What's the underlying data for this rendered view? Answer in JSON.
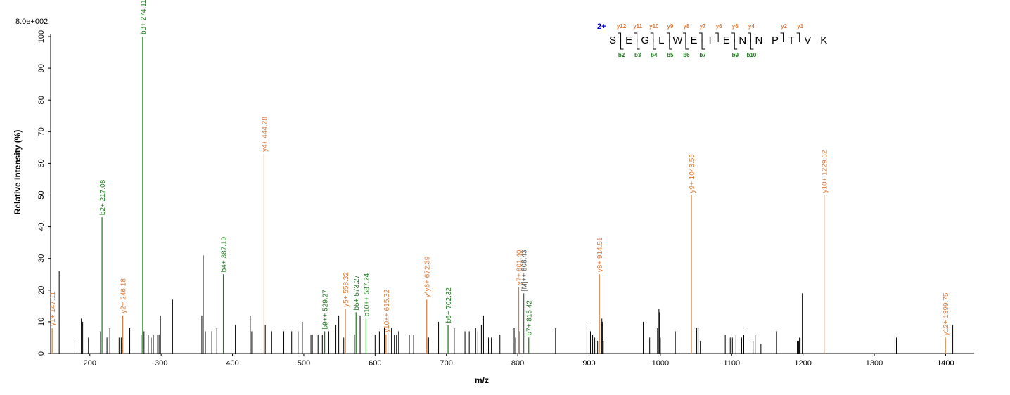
{
  "chart_data": {
    "type": "bar",
    "max_intensity_label": "8.0e+002",
    "xlabel": "m/z",
    "ylabel": "Relative   Intensity (%)",
    "xlim": [
      145,
      1440
    ],
    "ylim": [
      0,
      100
    ],
    "x_ticks": [
      200,
      300,
      400,
      500,
      600,
      700,
      800,
      900,
      1000,
      1100,
      1200,
      1300,
      1400
    ],
    "y_ticks": [
      0,
      10,
      20,
      30,
      40,
      50,
      60,
      70,
      80,
      90,
      100
    ],
    "colors": {
      "unassigned": "#000000",
      "y_ion": "#e07b39",
      "b_ion": "#1a7a1a",
      "precursor": "#555555",
      "charge": "#0000cc"
    },
    "annotated_peaks": [
      {
        "mz": 147.11,
        "intensity": 8,
        "label": "y1+ 147.11",
        "series": "y"
      },
      {
        "mz": 217.08,
        "intensity": 43,
        "label": "b2+ 217.08",
        "series": "b"
      },
      {
        "mz": 246.18,
        "intensity": 12,
        "label": "y2+ 246.18",
        "series": "y"
      },
      {
        "mz": 274.11,
        "intensity": 100,
        "label": "b3+ 274.11",
        "series": "b"
      },
      {
        "mz": 387.19,
        "intensity": 25,
        "label": "b4+ 387.19",
        "series": "b"
      },
      {
        "mz": 444.28,
        "intensity": 63,
        "label": "y4+ 444.28",
        "series": "y"
      },
      {
        "mz": 529.27,
        "intensity": 7,
        "label": "b9++ 529.27",
        "series": "b"
      },
      {
        "mz": 558.32,
        "intensity": 14,
        "label": "y5+ 558.32",
        "series": "y"
      },
      {
        "mz": 573.27,
        "intensity": 13,
        "label": "b5+ 573.27",
        "series": "b"
      },
      {
        "mz": 587.24,
        "intensity": 11,
        "label": "b10++ 587.24",
        "series": "b"
      },
      {
        "mz": 615.32,
        "intensity": 6,
        "label": "y10++ 615.32",
        "series": "y"
      },
      {
        "mz": 672.39,
        "intensity": 17,
        "label": "y*y6+ 672.39",
        "series": "y"
      },
      {
        "mz": 702.32,
        "intensity": 9,
        "label": "b6+ 702.32",
        "series": "b"
      },
      {
        "mz": 801.4,
        "intensity": 21,
        "label": "y7+ 801.40",
        "series": "y"
      },
      {
        "mz": 808.43,
        "intensity": 19,
        "label": "[M]++ 808.43",
        "series": "precursor"
      },
      {
        "mz": 815.42,
        "intensity": 5,
        "label": "b7+ 815.42",
        "series": "b"
      },
      {
        "mz": 914.51,
        "intensity": 25,
        "label": "y8+ 914.51",
        "series": "y"
      },
      {
        "mz": 1043.55,
        "intensity": 50,
        "label": "y9+ 1043.55",
        "series": "y"
      },
      {
        "mz": 1229.62,
        "intensity": 50,
        "label": "y10+ 1229.62",
        "series": "y"
      },
      {
        "mz": 1399.75,
        "intensity": 5,
        "label": "y12+ 1399.75",
        "series": "y"
      }
    ],
    "unassigned_peaks": [
      [
        157,
        26
      ],
      [
        179,
        5
      ],
      [
        188,
        11
      ],
      [
        190,
        10
      ],
      [
        198,
        5
      ],
      [
        215,
        7
      ],
      [
        224,
        5
      ],
      [
        228,
        8
      ],
      [
        241,
        5
      ],
      [
        244,
        5
      ],
      [
        256,
        8
      ],
      [
        272,
        6
      ],
      [
        276,
        7
      ],
      [
        282,
        6
      ],
      [
        286,
        5
      ],
      [
        289,
        6
      ],
      [
        295,
        6
      ],
      [
        297,
        6
      ],
      [
        299,
        12
      ],
      [
        316,
        17
      ],
      [
        357,
        12
      ],
      [
        359,
        31
      ],
      [
        362,
        7
      ],
      [
        371,
        7
      ],
      [
        378,
        8
      ],
      [
        404,
        9
      ],
      [
        425,
        12
      ],
      [
        427,
        7
      ],
      [
        446,
        9
      ],
      [
        455,
        7
      ],
      [
        472,
        7
      ],
      [
        483,
        7
      ],
      [
        492,
        7
      ],
      [
        498,
        10
      ],
      [
        510,
        6
      ],
      [
        512,
        6
      ],
      [
        520,
        6
      ],
      [
        526,
        6
      ],
      [
        535,
        7
      ],
      [
        538,
        8
      ],
      [
        541,
        7
      ],
      [
        545,
        9
      ],
      [
        549,
        12
      ],
      [
        556,
        5
      ],
      [
        571,
        6
      ],
      [
        579,
        12
      ],
      [
        600,
        6
      ],
      [
        606,
        7
      ],
      [
        613,
        8
      ],
      [
        618,
        12
      ],
      [
        623,
        8
      ],
      [
        627,
        6
      ],
      [
        630,
        6
      ],
      [
        633,
        7
      ],
      [
        648,
        6
      ],
      [
        654,
        6
      ],
      [
        674,
        5
      ],
      [
        675,
        5
      ],
      [
        689,
        10
      ],
      [
        711,
        8
      ],
      [
        726,
        7
      ],
      [
        732,
        7
      ],
      [
        741,
        8
      ],
      [
        744,
        7
      ],
      [
        749,
        9
      ],
      [
        752,
        12
      ],
      [
        759,
        5
      ],
      [
        763,
        5
      ],
      [
        775,
        6
      ],
      [
        795,
        8
      ],
      [
        797,
        5
      ],
      [
        803,
        7
      ],
      [
        853,
        8
      ],
      [
        897,
        10
      ],
      [
        902,
        7
      ],
      [
        905,
        6
      ],
      [
        908,
        5
      ],
      [
        912,
        4
      ],
      [
        917,
        10
      ],
      [
        918,
        11
      ],
      [
        919,
        10
      ],
      [
        920,
        4
      ],
      [
        976,
        10
      ],
      [
        985,
        5
      ],
      [
        996,
        8
      ],
      [
        998,
        14
      ],
      [
        999,
        13
      ],
      [
        1000,
        5
      ],
      [
        1021,
        7
      ],
      [
        1051,
        8
      ],
      [
        1053,
        8
      ],
      [
        1056,
        4
      ],
      [
        1091,
        6
      ],
      [
        1098,
        5
      ],
      [
        1101,
        5
      ],
      [
        1106,
        6
      ],
      [
        1114,
        5
      ],
      [
        1116,
        8
      ],
      [
        1117,
        6
      ],
      [
        1130,
        4
      ],
      [
        1133,
        6
      ],
      [
        1141,
        3
      ],
      [
        1163,
        7
      ],
      [
        1192,
        4
      ],
      [
        1194,
        4
      ],
      [
        1195,
        5
      ],
      [
        1196,
        5
      ],
      [
        1199,
        19
      ],
      [
        1329,
        6
      ],
      [
        1331,
        5
      ],
      [
        1410,
        9
      ]
    ],
    "sequence": {
      "charge": "2+",
      "residues": [
        "S",
        "E",
        "G",
        "L",
        "W",
        "E",
        "I",
        "E",
        "N",
        "N",
        "P",
        "T",
        "V",
        "K"
      ],
      "y_ions": [
        {
          "after": 1,
          "label": "y12"
        },
        {
          "after": 2,
          "label": "y11"
        },
        {
          "after": 3,
          "label": "y10"
        },
        {
          "after": 4,
          "label": "y9"
        },
        {
          "after": 5,
          "label": "y8"
        },
        {
          "after": 6,
          "label": "y7"
        },
        {
          "after": 7,
          "label": "y6"
        },
        {
          "after": 8,
          "label": "y6"
        },
        {
          "after": 9,
          "label": "y4"
        },
        {
          "after": 11,
          "label": "y2"
        },
        {
          "after": 12,
          "label": "y1"
        }
      ],
      "b_ions": [
        {
          "after": 1,
          "label": "b2"
        },
        {
          "after": 2,
          "label": "b3"
        },
        {
          "after": 3,
          "label": "b4"
        },
        {
          "after": 4,
          "label": "b5"
        },
        {
          "after": 5,
          "label": "b6"
        },
        {
          "after": 6,
          "label": "b7"
        },
        {
          "after": 8,
          "label": "b9"
        },
        {
          "after": 9,
          "label": "b10"
        }
      ]
    }
  }
}
